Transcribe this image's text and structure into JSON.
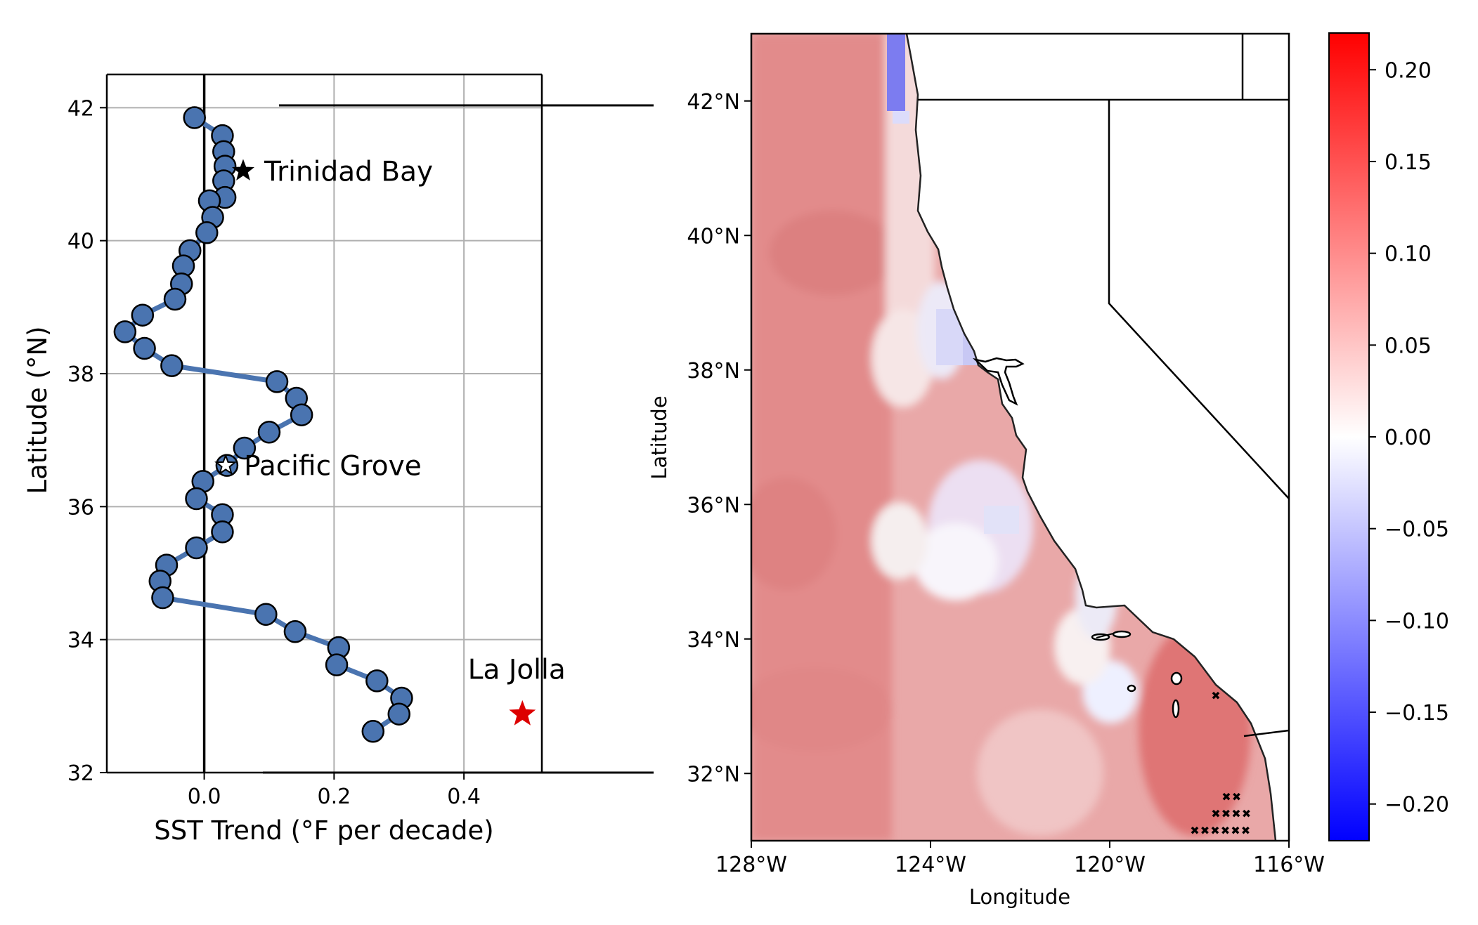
{
  "chart_data": [
    {
      "type": "line",
      "xlabel": "SST Trend (°F per decade)",
      "ylabel": "Latitude (°N)",
      "xlim": [
        -0.15,
        0.52
      ],
      "ylim": [
        32,
        42.5
      ],
      "xticks": [
        0.0,
        0.2,
        0.4
      ],
      "xtick_labels": [
        "0.0",
        "0.2",
        "0.4"
      ],
      "yticks": [
        32,
        34,
        36,
        38,
        40,
        42
      ],
      "ytick_labels": [
        "32",
        "34",
        "36",
        "38",
        "40",
        "42"
      ],
      "grid": true,
      "line_color": "#4a74b0",
      "marker_color": "#4a74b0",
      "series": [
        {
          "x": [
            -0.015,
            0.028,
            0.03,
            0.032,
            0.03,
            0.032,
            0.008,
            0.013,
            0.004,
            -0.022,
            -0.032,
            -0.035,
            -0.045,
            -0.095,
            -0.122,
            -0.092,
            -0.05,
            0.112,
            0.142,
            0.15,
            0.1,
            0.062,
            0.035,
            -0.002,
            -0.012,
            0.028,
            0.028,
            -0.012,
            -0.058,
            -0.068,
            -0.064,
            0.095,
            0.14,
            0.207,
            0.204,
            0.266,
            0.304,
            0.3,
            0.26
          ],
          "y": [
            41.85,
            41.58,
            41.34,
            41.12,
            40.9,
            40.65,
            40.6,
            40.35,
            40.12,
            39.85,
            39.62,
            39.35,
            39.12,
            38.88,
            38.63,
            38.38,
            38.12,
            37.88,
            37.63,
            37.38,
            37.12,
            36.88,
            36.62,
            36.38,
            36.12,
            35.88,
            35.62,
            35.38,
            35.12,
            34.88,
            34.63,
            34.38,
            34.12,
            33.88,
            33.62,
            33.38,
            33.12,
            32.88,
            32.62
          ]
        }
      ],
      "annotations": [
        {
          "text": "Trinidad Bay",
          "x": 0.06,
          "y": 41.05,
          "marker": "star",
          "color": "#000000"
        },
        {
          "text": "Pacific Grove",
          "x": 0.033,
          "y": 36.62,
          "marker": "star",
          "color": "#ffffff"
        },
        {
          "text": "La Jolla",
          "x": 0.49,
          "y": 32.88,
          "marker": "star",
          "color": "#dd0000"
        }
      ]
    },
    {
      "type": "heatmap",
      "xlabel": "Longitude",
      "ylabel": "Latitude",
      "xlim": [
        -128,
        -116
      ],
      "ylim": [
        31,
        43
      ],
      "xtick_labels": [
        "128°W",
        "124°W",
        "120°W",
        "116°W"
      ],
      "ytick_labels": [
        "32°N",
        "34°N",
        "36°N",
        "38°N",
        "40°N",
        "42°N"
      ],
      "colorbar": {
        "vmin": -0.22,
        "vmax": 0.22,
        "cmap": "bwr",
        "ticks": [
          0.2,
          0.15,
          0.1,
          0.05,
          0.0,
          -0.05,
          -0.1,
          -0.15,
          -0.2
        ],
        "tick_labels": [
          "0.20",
          "0.15",
          "0.10",
          "0.05",
          "0.00",
          "−0.05",
          "−0.10",
          "−0.15",
          "−0.20"
        ]
      }
    }
  ]
}
